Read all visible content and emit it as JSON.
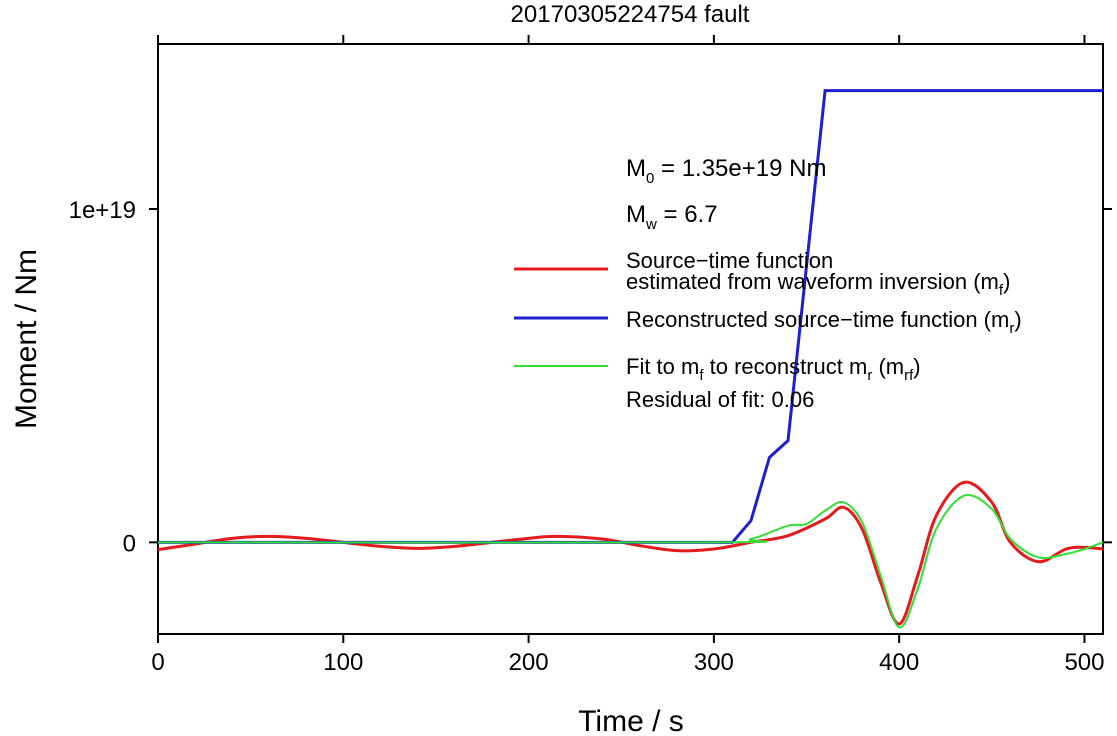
{
  "chart_data": {
    "type": "line",
    "title": "20170305224754 fault",
    "xlabel": "Time / s",
    "ylabel": "Moment / Nm",
    "xlim": [
      0,
      510
    ],
    "ylim": [
      -2.75e+18,
      1.495e+19
    ],
    "x_ticks": [
      0,
      100,
      200,
      300,
      400,
      500
    ],
    "x_tick_labels": [
      "0",
      "100",
      "200",
      "300",
      "400",
      "500"
    ],
    "y_ticks": [
      0,
      1e+19
    ],
    "y_tick_labels": [
      "0",
      "1e+19"
    ],
    "grid": false,
    "legend_position": "right",
    "annotations": {
      "m0_prefix": "M",
      "m0_sub": "0",
      "m0_value": " = 1.35e+19 Nm",
      "mw_prefix": "M",
      "mw_sub": "w",
      "mw_value": " = 6.7",
      "residual": "Residual of fit: 0.06"
    },
    "legend": {
      "red_line1": "Source−time function",
      "red_line2_main": "estimated from waveform inversion (m",
      "red_line2_sub": "f",
      "red_line2_end": ")",
      "blue_main": "Reconstructed source−time function (m",
      "blue_sub": "r",
      "blue_end": ")",
      "green_a": "Fit to m",
      "green_a_sub": "f",
      "green_b": " to reconstruct m",
      "green_b_sub": "r",
      "green_c": " (m",
      "green_c_sub": "rf",
      "green_d": ")"
    },
    "colors": {
      "red": "#e41a1c",
      "blue": "#1f1fcf",
      "green": "#33dd33"
    },
    "series": [
      {
        "name": "Source−time function estimated from waveform inversion (mf)",
        "color": "#e41a1c",
        "x": [
          0,
          20,
          40,
          60,
          80,
          100,
          120,
          140,
          160,
          180,
          200,
          215,
          240,
          260,
          280,
          300,
          320,
          340,
          360,
          370,
          380,
          390,
          400,
          410,
          420,
          435,
          450,
          460,
          475,
          490,
          500,
          510
        ],
        "y": [
          -2.2e+17,
          -5e+16,
          1.2e+17,
          1.8e+17,
          1.2e+17,
          0,
          -1.2e+17,
          -1.8e+17,
          -1.2e+17,
          0,
          1.2e+17,
          1.8e+17,
          1e+17,
          -1e+17,
          -2.5e+17,
          -2e+17,
          0,
          2e+17,
          7e+17,
          1.05e+18,
          4e+17,
          -1.2e+18,
          -2.45e+18,
          -1e+18,
          8e+17,
          1.8e+18,
          1.2e+18,
          0,
          -5.8e+17,
          -2e+17,
          -1.5e+17,
          -2e+17
        ]
      },
      {
        "name": "Reconstructed source−time function (mr)",
        "color": "#1f1fcf",
        "x": [
          0,
          310,
          320,
          330,
          340,
          360,
          510
        ],
        "y": [
          0,
          0,
          6.5e+17,
          2.55e+18,
          3.05e+18,
          1.355e+19,
          1.355e+19
        ]
      },
      {
        "name": "Fit to mf to reconstruct mr (mrf)",
        "color": "#33dd33",
        "x": [
          0,
          300,
          320,
          340,
          350,
          360,
          370,
          380,
          390,
          400,
          410,
          420,
          435,
          450,
          460,
          475,
          490,
          500,
          510
        ],
        "y": [
          0,
          0,
          1e+17,
          5e+17,
          5.5e+17,
          9.5e+17,
          1.2e+18,
          6e+17,
          -1e+18,
          -2.55e+18,
          -1.4e+18,
          4e+17,
          1.4e+18,
          1e+18,
          1e+17,
          -4.5e+17,
          -3.5e+17,
          -2e+17,
          0
        ]
      }
    ]
  }
}
